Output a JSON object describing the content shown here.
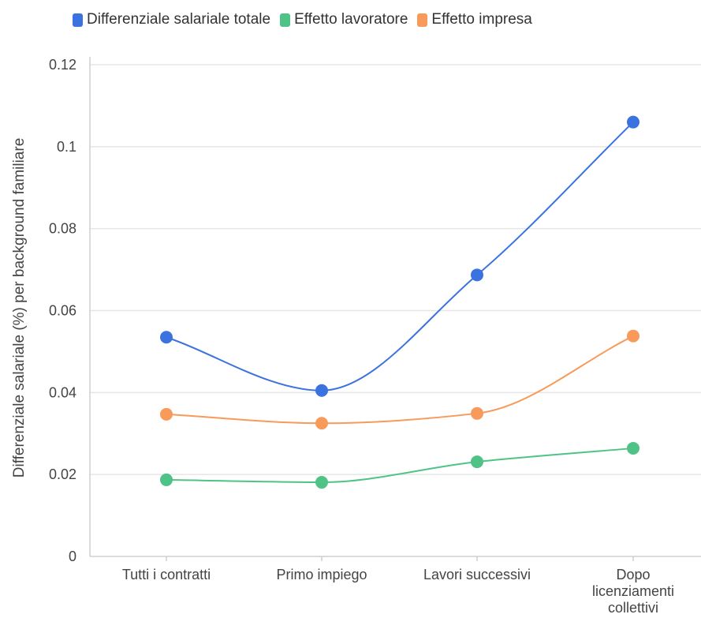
{
  "chart_data": {
    "type": "line",
    "categories": [
      "Tutti i contratti",
      "Primo impiego",
      "Lavori successivi",
      "Dopo licenziamenti collettivi"
    ],
    "category_lines": [
      [
        "Tutti i contratti"
      ],
      [
        "Primo impiego"
      ],
      [
        "Lavori successivi"
      ],
      [
        "Dopo",
        "licenziamenti",
        "collettivi"
      ]
    ],
    "series": [
      {
        "name": "Differenziale salariale totale",
        "color": "#3a72e0",
        "values": [
          0.0535,
          0.0405,
          0.0687,
          0.106
        ]
      },
      {
        "name": "Effetto lavoratore",
        "color": "#4fc386",
        "values": [
          0.0187,
          0.0181,
          0.0231,
          0.0264
        ]
      },
      {
        "name": "Effetto impresa",
        "color": "#f89a59",
        "values": [
          0.0347,
          0.0325,
          0.0349,
          0.0538
        ]
      }
    ],
    "ylabel": "Differenziale salariale (%) per background familiare",
    "xlabel": "",
    "ylim": [
      0,
      0.12
    ],
    "yticks": [
      0,
      0.02,
      0.04,
      0.06,
      0.08,
      0.1,
      0.12
    ],
    "ytick_labels": [
      "0",
      "0.02",
      "0.04",
      "0.06",
      "0.08",
      "0.1",
      "0.12"
    ],
    "grid": true,
    "legend_position": "top"
  }
}
